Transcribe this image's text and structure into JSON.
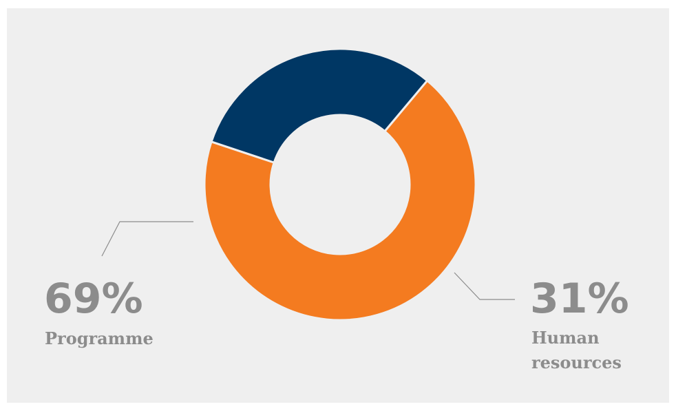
{
  "chart_data": {
    "type": "pie",
    "donut": true,
    "slices": [
      {
        "label_lines": [
          "Programme"
        ],
        "value": 69,
        "value_text": "69%",
        "color": "#f47b20"
      },
      {
        "label_lines": [
          "Human",
          "resources"
        ],
        "value": 31,
        "value_text": "31%",
        "color": "#003764"
      }
    ],
    "title": "",
    "legend": "none",
    "background": "#efefef"
  }
}
